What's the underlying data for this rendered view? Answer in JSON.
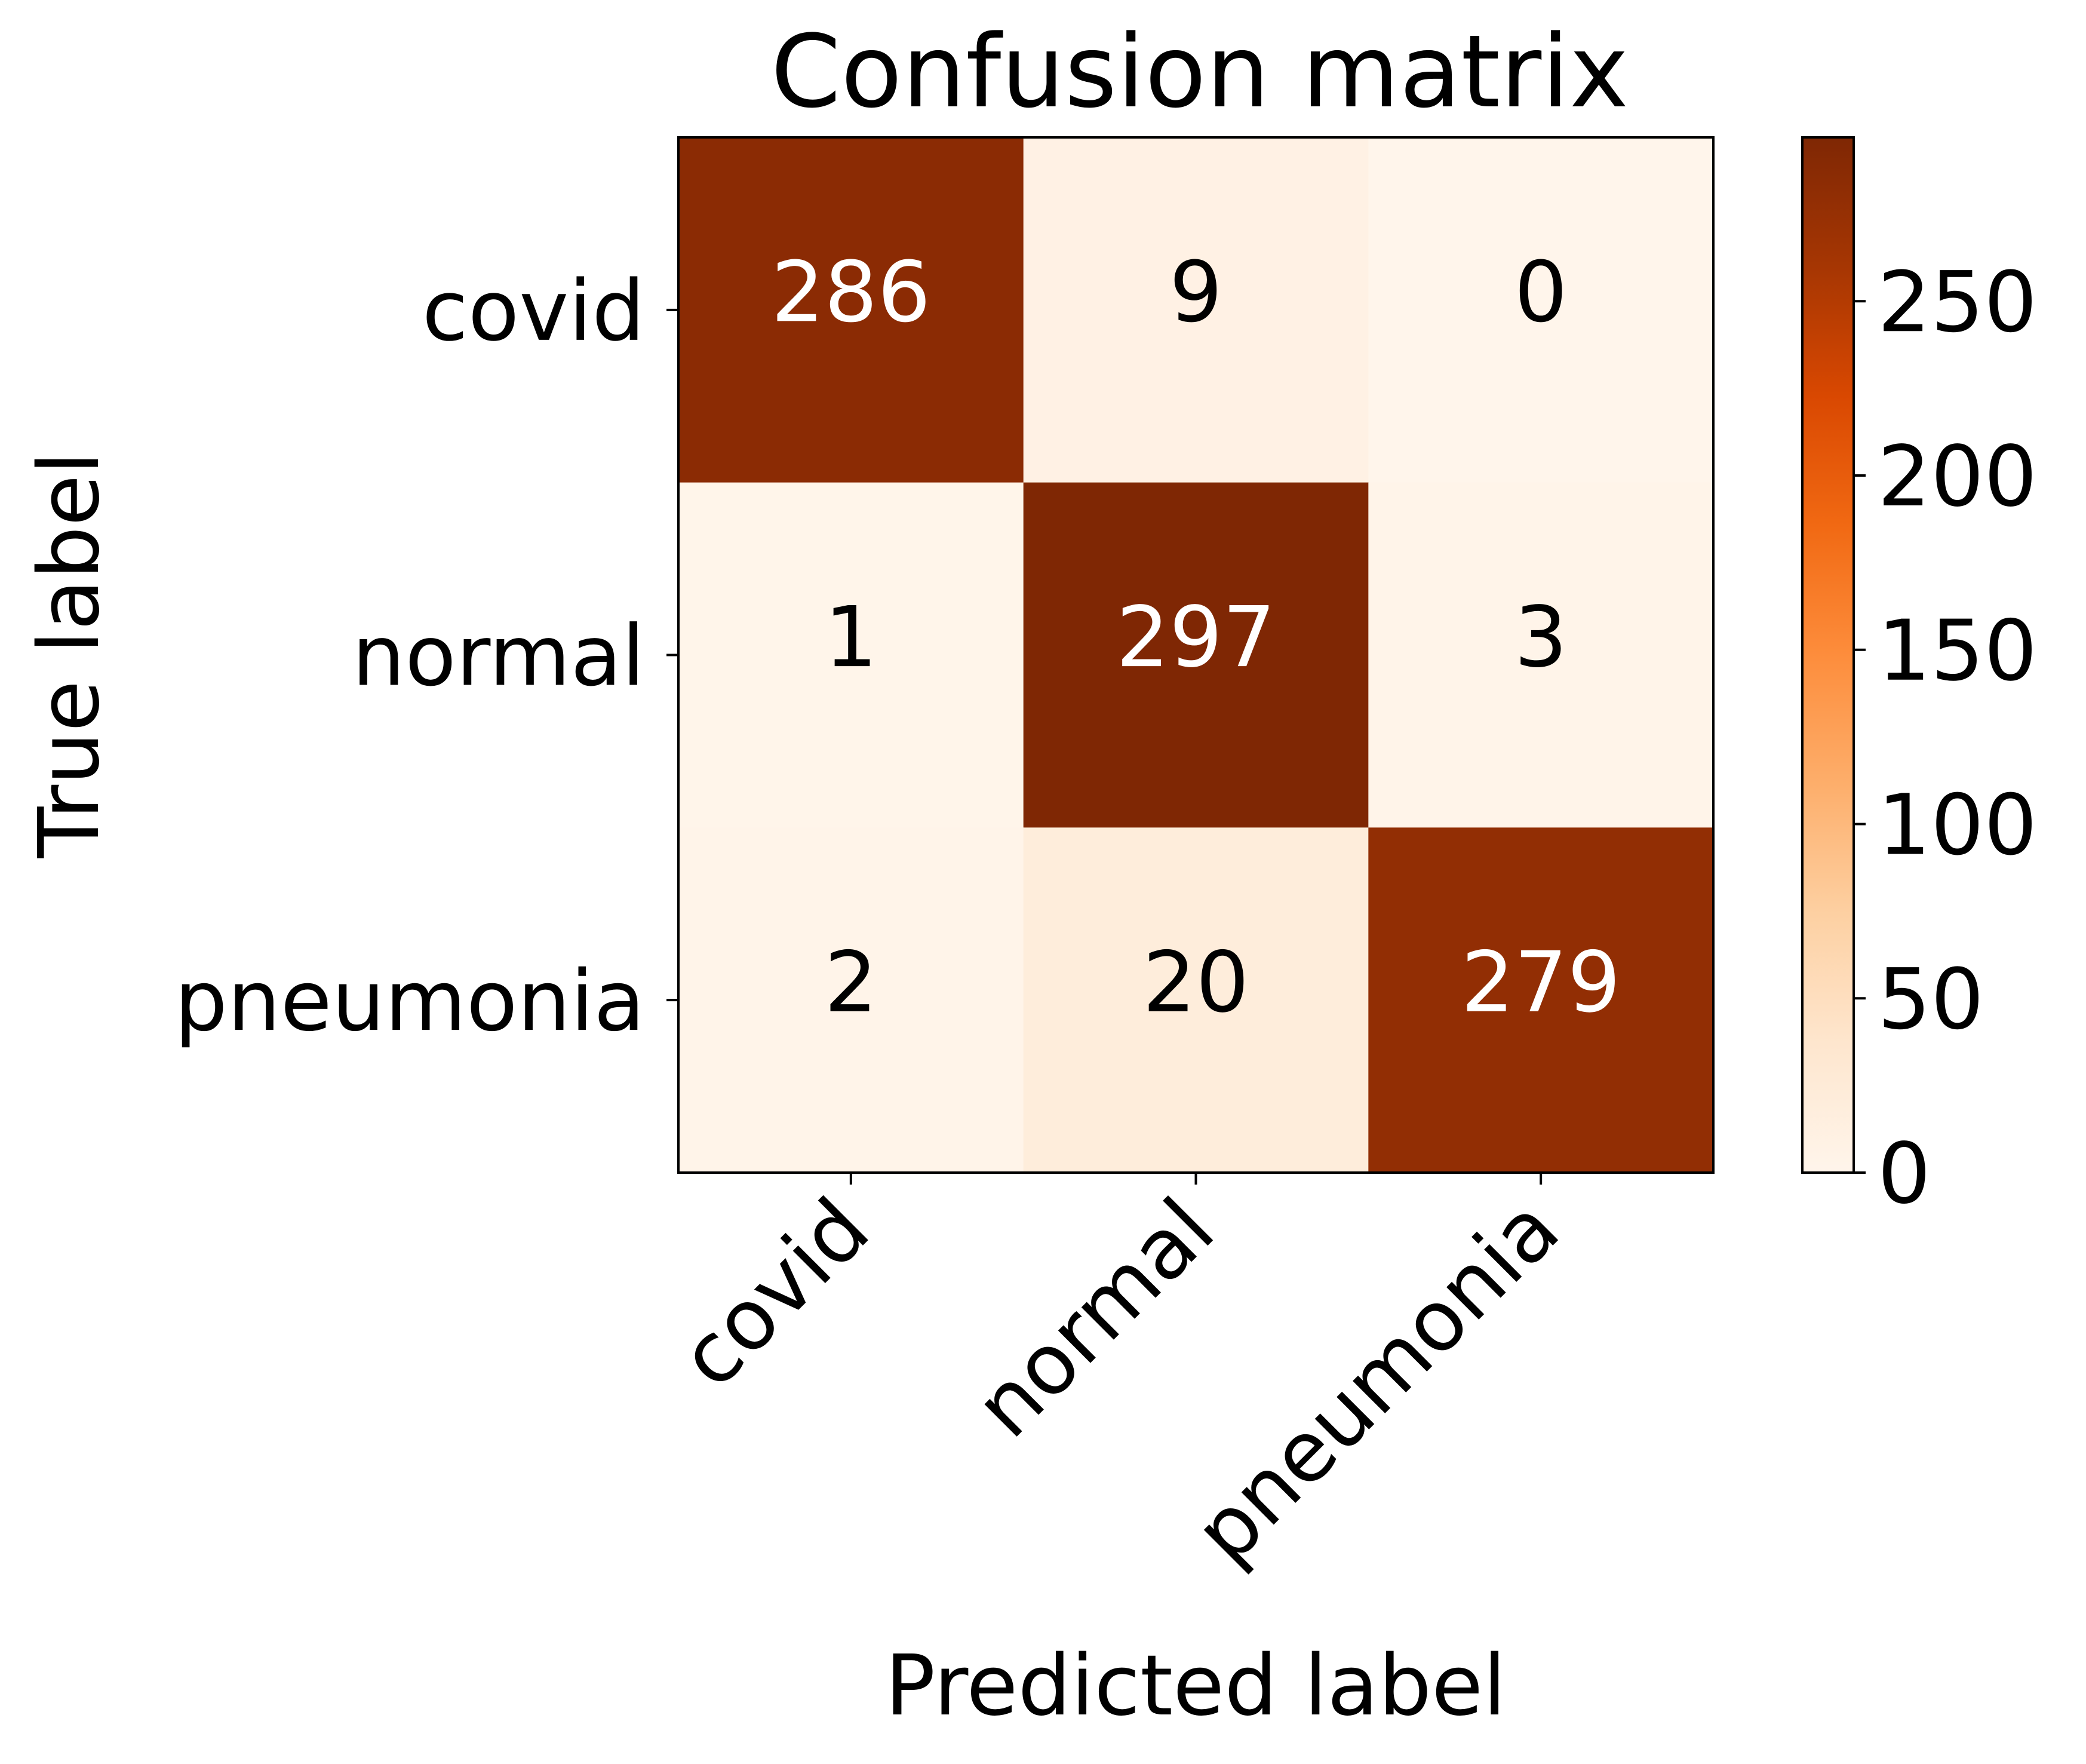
{
  "chart_data": {
    "type": "heatmap",
    "title": "Confusion matrix",
    "xlabel": "Predicted label",
    "ylabel": "True label",
    "x_categories": [
      "covid",
      "normal",
      "pneumonia"
    ],
    "y_categories": [
      "covid",
      "normal",
      "pneumonia"
    ],
    "values": [
      [
        286,
        9,
        0
      ],
      [
        1,
        297,
        3
      ],
      [
        2,
        20,
        279
      ]
    ],
    "colorbar": {
      "range": [
        0,
        297
      ],
      "ticks": [
        0,
        50,
        100,
        150,
        200,
        250
      ]
    },
    "colormap": {
      "name": "Oranges",
      "stops": [
        "#fff5eb",
        "#fee6ce",
        "#fdd0a2",
        "#fdae6b",
        "#fd8d3c",
        "#f16913",
        "#d94801",
        "#a63603",
        "#7f2704"
      ]
    },
    "text_colors": {
      "on_dark": "#ffffff",
      "on_light": "#000000"
    },
    "grid": false
  }
}
